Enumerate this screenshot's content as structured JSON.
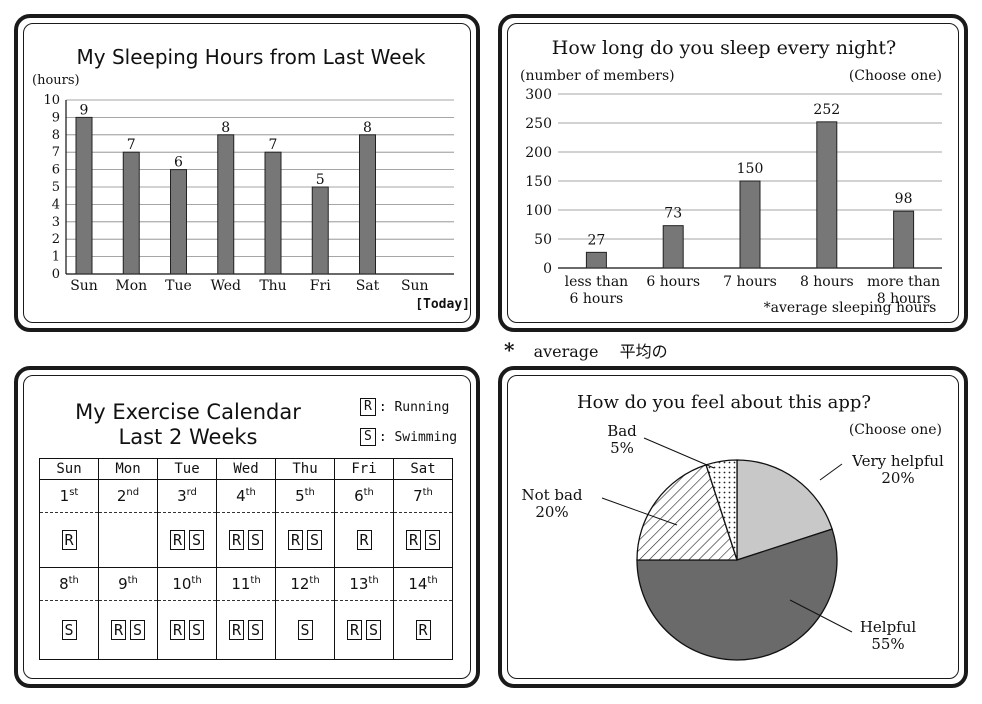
{
  "sleep_week": {
    "title": "My Sleeping Hours from Last Week",
    "unit_label": "(hours)",
    "today_label": "[Today]"
  },
  "sleep_survey": {
    "title": "How long do you sleep every night?",
    "unit_label": "(number of members)",
    "choose_label": "(Choose one)",
    "footnote": "*average sleeping hours"
  },
  "footnote_gloss": {
    "star": "*",
    "word": "average",
    "translation": "平均の"
  },
  "calendar": {
    "title_line1": "My Exercise Calendar",
    "title_line2": "Last 2 Weeks",
    "legend": [
      {
        "code": "R",
        "label": ": Running"
      },
      {
        "code": "S",
        "label": ": Swimming"
      }
    ],
    "days": [
      "Sun",
      "Mon",
      "Tue",
      "Wed",
      "Thu",
      "Fri",
      "Sat"
    ],
    "weeks": [
      {
        "dates": [
          [
            "1",
            "st"
          ],
          [
            "2",
            "nd"
          ],
          [
            "3",
            "rd"
          ],
          [
            "4",
            "th"
          ],
          [
            "5",
            "th"
          ],
          [
            "6",
            "th"
          ],
          [
            "7",
            "th"
          ]
        ],
        "activities": [
          [
            "R"
          ],
          [],
          [
            "R",
            "S"
          ],
          [
            "R",
            "S"
          ],
          [
            "R",
            "S"
          ],
          [
            "R"
          ],
          [
            "R",
            "S"
          ]
        ]
      },
      {
        "dates": [
          [
            "8",
            "th"
          ],
          [
            "9",
            "th"
          ],
          [
            "10",
            "th"
          ],
          [
            "11",
            "th"
          ],
          [
            "12",
            "th"
          ],
          [
            "13",
            "th"
          ],
          [
            "14",
            "th"
          ]
        ],
        "activities": [
          [
            "S"
          ],
          [
            "R",
            "S"
          ],
          [
            "R",
            "S"
          ],
          [
            "R",
            "S"
          ],
          [
            "S"
          ],
          [
            "R",
            "S"
          ],
          [
            "R"
          ]
        ]
      }
    ]
  },
  "feel_survey": {
    "title": "How do you feel about this app?",
    "choose_label": "(Choose one)"
  },
  "chart_data": [
    {
      "type": "bar",
      "title": "My Sleeping Hours from Last Week",
      "ylabel": "(hours)",
      "categories": [
        "Sun",
        "Mon",
        "Tue",
        "Wed",
        "Thu",
        "Fri",
        "Sat",
        "Sun"
      ],
      "values": [
        9,
        7,
        6,
        8,
        7,
        5,
        8,
        null
      ],
      "ylim": [
        0,
        10
      ],
      "yticks": [
        0,
        1,
        2,
        3,
        4,
        5,
        6,
        7,
        8,
        9,
        10
      ],
      "grid": true
    },
    {
      "type": "bar",
      "title": "How long do you sleep every night?",
      "ylabel": "(number of members)",
      "categories": [
        [
          "less than",
          "6 hours"
        ],
        [
          "6 hours"
        ],
        [
          "7 hours"
        ],
        [
          "8 hours"
        ],
        [
          "more than",
          "8 hours"
        ]
      ],
      "values": [
        27,
        73,
        150,
        252,
        98
      ],
      "ylim": [
        0,
        300
      ],
      "yticks": [
        0,
        50,
        100,
        150,
        200,
        250,
        300
      ],
      "grid": true
    },
    {
      "type": "pie",
      "title": "How do you feel about this app?",
      "slices": [
        {
          "label": "Very helpful",
          "value": 20,
          "value_label": "20%",
          "color": "#c8c8c8",
          "pattern": "solid"
        },
        {
          "label": "Helpful",
          "value": 55,
          "value_label": "55%",
          "color": "#6a6a6a",
          "pattern": "solid"
        },
        {
          "label": "Not bad",
          "value": 20,
          "value_label": "20%",
          "color": "#ffffff",
          "pattern": "hatch"
        },
        {
          "label": "Bad",
          "value": 5,
          "value_label": "5%",
          "color": "#ffffff",
          "pattern": "dots"
        }
      ]
    }
  ]
}
